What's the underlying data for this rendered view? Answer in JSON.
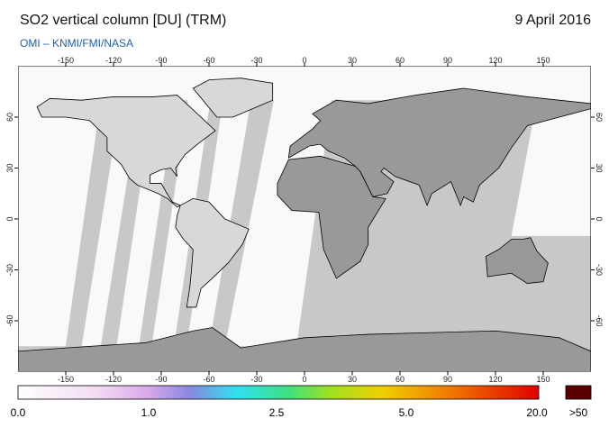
{
  "header": {
    "title": "SO2 vertical column [DU] (TRM)",
    "date": "9 April 2016",
    "credit": "OMI  –  KNMI/FMI/NASA"
  },
  "map": {
    "lonlim": [
      -180,
      180
    ],
    "latlim": [
      -90,
      90
    ],
    "lon_ticks": [
      -150,
      -120,
      -90,
      -60,
      -30,
      0,
      30,
      60,
      90,
      120,
      150
    ],
    "lat_ticks": [
      -60,
      -30,
      0,
      30,
      60
    ]
  },
  "colorbar": {
    "labels": [
      "0.0",
      "1.0",
      "2.5",
      "5.0",
      "20.0",
      ">50"
    ]
  }
}
